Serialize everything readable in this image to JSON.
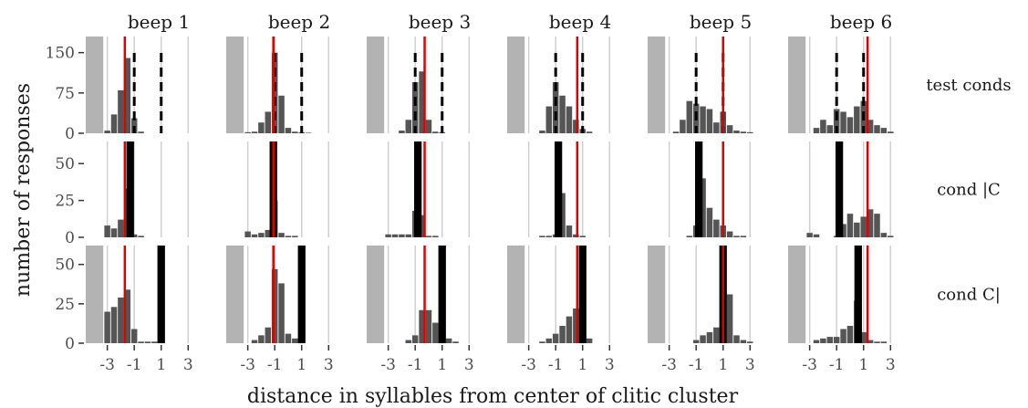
{
  "chart_data": {
    "type": "bar",
    "xlabel": "distance in syllables from center of clitic cluster",
    "ylabel": "number of responses",
    "column_labels": [
      "beep 1",
      "beep 2",
      "beep 3",
      "beep 4",
      "beep 5",
      "beep 6"
    ],
    "row_labels": [
      "test conds",
      "cond |C",
      "cond C|"
    ],
    "x_ticks": [
      -3,
      -1,
      1,
      3
    ],
    "xlim": [
      -4.6,
      4.2
    ],
    "x_tick_labels": [
      "-3",
      "-1",
      "1",
      "3"
    ],
    "bin_centers": [
      -3.5,
      -3,
      -2.5,
      -2,
      -1.5,
      -1,
      -0.5,
      0,
      0.5,
      1,
      1.5,
      2,
      2.5,
      3,
      3.5
    ],
    "rows": [
      {
        "ylim": [
          0,
          180
        ],
        "y_ticks": [
          0,
          75,
          150
        ],
        "y_tick_labels": [
          "0",
          "75",
          "150"
        ],
        "panels": [
          {
            "values": [
              0,
              5,
              35,
              80,
              140,
              28,
              3,
              0,
              0,
              0,
              0,
              0,
              0,
              0,
              0
            ],
            "red_line": -1.7,
            "black_dashed": [
              -1,
              1
            ],
            "grey_region": [
              -4.6,
              -3.3
            ]
          },
          {
            "values": [
              0,
              2,
              3,
              20,
              40,
              150,
              70,
              10,
              3,
              2,
              1,
              0,
              0,
              0,
              0
            ],
            "red_line": -1.1,
            "black_dashed": [
              -1,
              1
            ],
            "grey_region": [
              -4.6,
              -3.3
            ]
          },
          {
            "values": [
              0,
              0,
              0,
              5,
              25,
              95,
              115,
              25,
              3,
              2,
              0,
              0,
              0,
              0,
              0
            ],
            "red_line": -0.3,
            "black_dashed": [
              -1,
              1
            ],
            "grey_region": [
              -4.6,
              -3.3
            ]
          },
          {
            "values": [
              0,
              0,
              0,
              5,
              50,
              95,
              70,
              50,
              25,
              8,
              3,
              0,
              0,
              0,
              0
            ],
            "red_line": 0.6,
            "black_dashed": [
              -1,
              1
            ],
            "grey_region": [
              -4.6,
              -3.3
            ]
          },
          {
            "values": [
              0,
              0,
              3,
              25,
              60,
              55,
              50,
              45,
              20,
              40,
              15,
              5,
              3,
              2,
              0
            ],
            "red_line": 1.0,
            "black_dashed": [
              -1,
              1
            ],
            "grey_region": [
              -4.6,
              -3.3
            ]
          },
          {
            "values": [
              0,
              0,
              10,
              25,
              15,
              45,
              40,
              30,
              50,
              60,
              25,
              15,
              10,
              3,
              0
            ],
            "red_line": 1.3,
            "black_dashed": [
              -1,
              1
            ],
            "grey_region": [
              -4.6,
              -3.3
            ]
          }
        ]
      },
      {
        "ylim": [
          0,
          65
        ],
        "y_ticks": [
          0,
          25,
          50
        ],
        "y_tick_labels": [
          "0",
          "25",
          "50"
        ],
        "panels": [
          {
            "values": [
              0,
              8,
              6,
              12,
              33,
              2,
              1,
              0,
              0,
              0,
              0,
              0,
              0,
              0,
              0
            ],
            "red_line": -1.7,
            "black_bar": -1.3,
            "grey_region": null
          },
          {
            "values": [
              0,
              4,
              2,
              3,
              5,
              25,
              3,
              1,
              1,
              0,
              0,
              0,
              0,
              0,
              0
            ],
            "red_line": -1.1,
            "black_bar": -1.1,
            "grey_region": null
          },
          {
            "values": [
              0,
              2,
              2,
              2,
              2,
              18,
              15,
              1,
              1,
              0,
              0,
              0,
              0,
              0,
              0
            ],
            "red_line": -0.3,
            "black_bar": -0.8,
            "grey_region": null
          },
          {
            "values": [
              0,
              0,
              0,
              1,
              1,
              2,
              30,
              8,
              2,
              1,
              0,
              0,
              0,
              0,
              0
            ],
            "red_line": 0.6,
            "black_bar": -0.8,
            "grey_region": null
          },
          {
            "values": [
              0,
              0,
              0,
              0,
              1,
              8,
              40,
              20,
              12,
              8,
              4,
              1,
              1,
              0,
              0
            ],
            "red_line": 1.0,
            "black_bar": -0.8,
            "grey_region": null
          },
          {
            "values": [
              0,
              3,
              2,
              0,
              0,
              1,
              9,
              16,
              10,
              14,
              19,
              16,
              3,
              1,
              0
            ],
            "red_line": 1.3,
            "black_bar": -0.8,
            "grey_region": null
          }
        ]
      },
      {
        "ylim": [
          0,
          62
        ],
        "y_ticks": [
          0,
          25,
          50
        ],
        "y_tick_labels": [
          "0",
          "25",
          "50"
        ],
        "panels": [
          {
            "values": [
              0,
              20,
              23,
              29,
              34,
              9,
              1,
              1,
              1,
              1,
              0,
              0,
              0,
              0,
              0
            ],
            "red_line": -1.7,
            "black_bar": 1.0,
            "grey_region": [
              -4.6,
              -3.3
            ]
          },
          {
            "values": [
              0,
              0,
              2,
              5,
              10,
              47,
              38,
              6,
              3,
              1,
              0,
              0,
              0,
              0,
              0
            ],
            "red_line": -1.1,
            "black_bar": 1.0,
            "grey_region": [
              -4.6,
              -3.3
            ]
          },
          {
            "values": [
              0,
              0,
              0,
              0,
              2,
              5,
              21,
              21,
              13,
              10,
              3,
              1,
              0,
              0,
              0
            ],
            "red_line": -0.3,
            "black_bar": 1.0,
            "grey_region": [
              -4.6,
              -3.3
            ]
          },
          {
            "values": [
              0,
              0,
              0,
              1,
              3,
              6,
              11,
              17,
              22,
              24,
              3,
              0,
              0,
              0,
              0
            ],
            "red_line": 0.6,
            "black_bar": 1.0,
            "grey_region": [
              -4.6,
              -3.3
            ]
          },
          {
            "values": [
              0,
              0,
              0,
              0,
              0,
              2,
              5,
              7,
              10,
              13,
              31,
              5,
              2,
              1,
              0
            ],
            "red_line": 1.0,
            "black_bar": 1.0,
            "grey_region": [
              -4.6,
              -3.3
            ]
          },
          {
            "values": [
              0,
              0,
              2,
              3,
              4,
              4,
              9,
              11,
              27,
              7,
              2,
              1,
              1,
              0,
              0
            ],
            "red_line": 1.3,
            "black_bar": 0.6,
            "grey_region": [
              -4.6,
              -3.3
            ]
          }
        ]
      }
    ],
    "colors": {
      "bar": "#555555",
      "red_line": "#e00000",
      "black": "#000000",
      "grey_region": "#b3b3b3",
      "grid": "#d0d0d0"
    }
  }
}
